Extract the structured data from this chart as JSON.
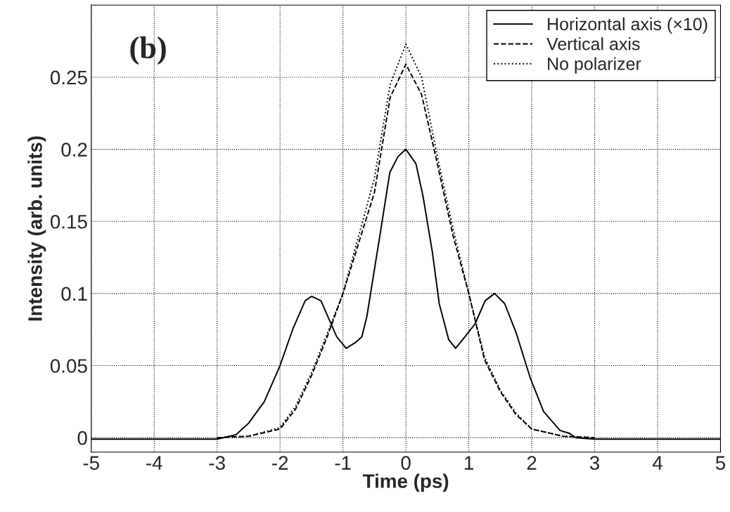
{
  "chart_data": {
    "type": "line",
    "xlabel": "Time (ps)",
    "ylabel": "Intensity (arb. units)",
    "annotations": [
      "(b)"
    ],
    "xlim": [
      -5,
      5
    ],
    "ylim": [
      -0.01,
      0.3
    ],
    "xticks": [
      -5,
      -4,
      -3,
      -2,
      -1,
      0,
      1,
      2,
      3,
      4,
      5
    ],
    "yticks": [
      0,
      0.05,
      0.1,
      0.15,
      0.2,
      0.25
    ],
    "grid": true,
    "legend": "top right",
    "series": [
      {
        "name": "Horizontal axis (×10)",
        "color": "#000000",
        "line_style": "solid",
        "x": [
          -5,
          -4.5,
          -4,
          -3.5,
          -3,
          -2.7,
          -2.5,
          -2.25,
          -2,
          -1.8,
          -1.6,
          -1.5,
          -1.35,
          -1.2,
          -1.1,
          -0.95,
          -0.8,
          -0.7,
          -0.62,
          -0.41,
          -0.255,
          -0.125,
          0,
          0.16,
          0.27,
          0.42,
          0.53,
          0.68,
          0.79,
          0.94,
          1.1,
          1.26,
          1.41,
          1.57,
          1.75,
          1.98,
          2.19,
          2.45,
          2.6,
          2.7,
          3,
          3.5,
          4,
          4.5,
          5
        ],
        "values": [
          -0.001,
          -0.001,
          -0.001,
          -0.001,
          -0.001,
          0.002,
          0.01,
          0.025,
          0.05,
          0.075,
          0.095,
          0.098,
          0.095,
          0.08,
          0.07,
          0.062,
          0.066,
          0.07,
          0.084,
          0.141,
          0.184,
          0.195,
          0.2,
          0.19,
          0.168,
          0.129,
          0.093,
          0.068,
          0.062,
          0.07,
          0.079,
          0.095,
          0.1,
          0.093,
          0.073,
          0.041,
          0.018,
          0.005,
          0.003,
          0,
          -0.001,
          -0.001,
          -0.001,
          -0.001,
          -0.001
        ]
      },
      {
        "name": "Vertical axis",
        "color": "#000000",
        "line_style": "dashed",
        "x": [
          -3,
          -2.5,
          -2,
          -1.75,
          -1.5,
          -1.25,
          -1,
          -0.75,
          -0.5,
          -0.25,
          0,
          0.25,
          0.5,
          0.75,
          1,
          1.25,
          1.5,
          1.75,
          2,
          2.5,
          3
        ],
        "values": [
          0,
          0.001,
          0.006,
          0.02,
          0.043,
          0.07,
          0.1,
          0.135,
          0.17,
          0.236,
          0.259,
          0.238,
          0.19,
          0.14,
          0.1,
          0.054,
          0.032,
          0.016,
          0.006,
          0.001,
          0
        ]
      },
      {
        "name": "No polarizer",
        "color": "#000000",
        "line_style": "dotted",
        "x": [
          -3,
          -2.5,
          -2,
          -1.75,
          -1.5,
          -1.25,
          -1,
          -0.75,
          -0.5,
          -0.25,
          0,
          0.25,
          0.5,
          0.75,
          1,
          1.25,
          1.5,
          1.75,
          2,
          2.5,
          3
        ],
        "values": [
          0,
          0.001,
          0.007,
          0.022,
          0.045,
          0.072,
          0.1,
          0.14,
          0.18,
          0.245,
          0.273,
          0.25,
          0.195,
          0.145,
          0.1,
          0.056,
          0.033,
          0.017,
          0.006,
          0.001,
          0
        ]
      }
    ]
  }
}
